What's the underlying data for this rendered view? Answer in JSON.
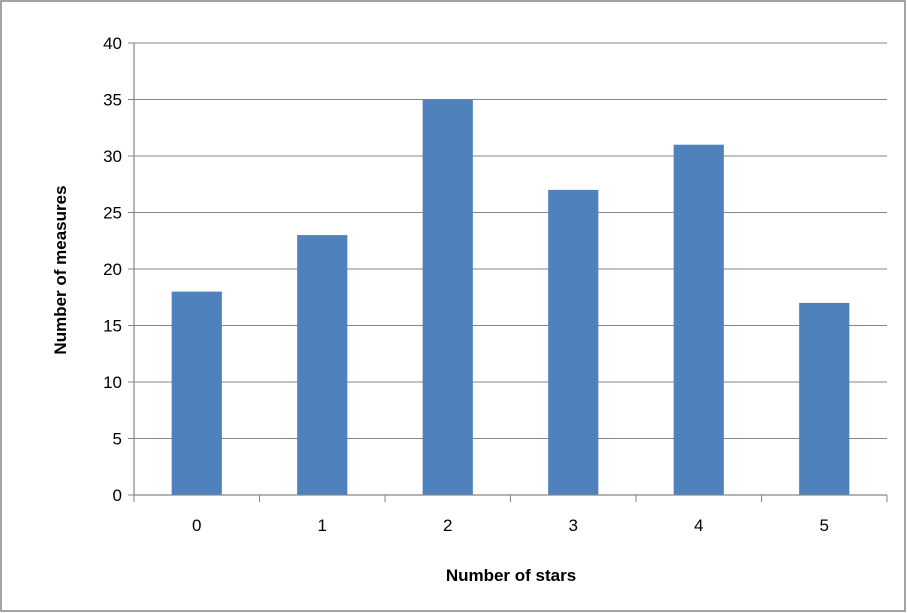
{
  "chart_data": {
    "type": "bar",
    "title": "",
    "xlabel": "Number of stars",
    "ylabel": "Number of measures",
    "categories": [
      "0",
      "1",
      "2",
      "3",
      "4",
      "5"
    ],
    "values": [
      18,
      23,
      35,
      27,
      31,
      17
    ],
    "ylim": [
      0,
      40
    ],
    "yticks": [
      "0",
      "5",
      "10",
      "15",
      "20",
      "25",
      "30",
      "35",
      "40"
    ],
    "grid": "horizontal",
    "legend": "none",
    "colors": {
      "bar": "#4f81bd",
      "grid": "#868686",
      "axis": "#868686",
      "frame": "#868686",
      "text": "#000000"
    }
  }
}
